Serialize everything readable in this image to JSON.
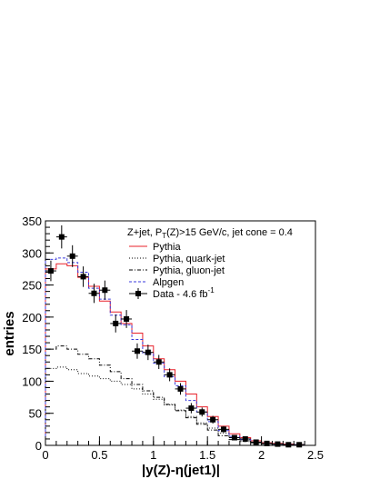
{
  "chart_data": {
    "type": "line",
    "xlabel": "|y(Z)-η(jet1)|",
    "ylabel": "entries",
    "xlim": [
      0,
      2.5
    ],
    "ylim": [
      0,
      350
    ],
    "x_ticks": [
      0,
      0.5,
      1,
      1.5,
      2,
      2.5
    ],
    "x_tick_labels": [
      "0",
      "0.5",
      "1",
      "1.5",
      "2",
      "2.5"
    ],
    "y_ticks": [
      0,
      50,
      100,
      150,
      200,
      250,
      300,
      350
    ],
    "y_tick_labels": [
      "0",
      "50",
      "100",
      "150",
      "200",
      "250",
      "300",
      "350"
    ],
    "legend_title": "Z+jet, P_T(Z)>15 GeV/c, jet cone = 0.4",
    "legend_title_parts": [
      "Z+jet, P",
      "T",
      "(Z)>15 GeV/c, jet cone = 0.4"
    ],
    "legend_position": "top-right",
    "bin_edges": [
      0,
      0.1,
      0.2,
      0.3,
      0.4,
      0.5,
      0.6,
      0.7,
      0.8,
      0.9,
      1.0,
      1.1,
      1.2,
      1.3,
      1.4,
      1.5,
      1.6,
      1.7,
      1.8,
      1.9,
      2.0,
      2.1,
      2.2,
      2.3,
      2.4
    ],
    "series": [
      {
        "name": "Pythia",
        "style": "solid",
        "color": "#e8202a",
        "values": [
          275,
          283,
          280,
          262,
          248,
          225,
          208,
          190,
          175,
          155,
          135,
          118,
          100,
          80,
          60,
          45,
          30,
          18,
          12,
          7,
          4,
          3,
          2,
          1
        ]
      },
      {
        "name": "Pythia, quark-jet",
        "style": "dotted",
        "color": "#000000",
        "values": [
          120,
          122,
          118,
          112,
          108,
          104,
          100,
          95,
          88,
          80,
          72,
          63,
          55,
          45,
          35,
          27,
          19,
          12,
          8,
          5,
          3,
          2,
          1,
          1
        ]
      },
      {
        "name": "Pythia, gluon-jet",
        "style": "dashdot",
        "color": "#000000",
        "values": [
          150,
          155,
          150,
          142,
          135,
          125,
          115,
          104,
          95,
          85,
          75,
          64,
          54,
          43,
          33,
          24,
          15,
          9,
          6,
          4,
          2,
          2,
          1,
          1
        ]
      },
      {
        "name": "Alpgen",
        "style": "dashed",
        "color": "#3a3adc",
        "values": [
          290,
          292,
          285,
          270,
          245,
          228,
          203,
          188,
          165,
          143,
          128,
          107,
          93,
          70,
          52,
          37,
          23,
          14,
          9,
          5,
          3,
          2,
          1,
          1
        ]
      }
    ],
    "data_points": {
      "name": "Data - 4.6 fb",
      "name_superscript": "-1",
      "marker": "filled-square",
      "x": [
        0.05,
        0.15,
        0.25,
        0.35,
        0.45,
        0.55,
        0.65,
        0.75,
        0.85,
        0.95,
        1.05,
        1.15,
        1.25,
        1.35,
        1.45,
        1.55,
        1.65,
        1.75,
        1.85,
        1.95,
        2.05,
        2.15,
        2.25,
        2.35
      ],
      "y": [
        272,
        325,
        295,
        263,
        237,
        242,
        190,
        197,
        147,
        145,
        130,
        110,
        88,
        58,
        52,
        40,
        25,
        12,
        10,
        5,
        3,
        2,
        1,
        1
      ],
      "yerr": [
        16,
        18,
        17,
        16,
        15,
        15,
        14,
        14,
        12,
        12,
        11,
        10,
        9,
        8,
        7,
        6,
        5,
        3.5,
        3,
        2.2,
        1.7,
        1.4,
        1,
        1
      ]
    }
  }
}
